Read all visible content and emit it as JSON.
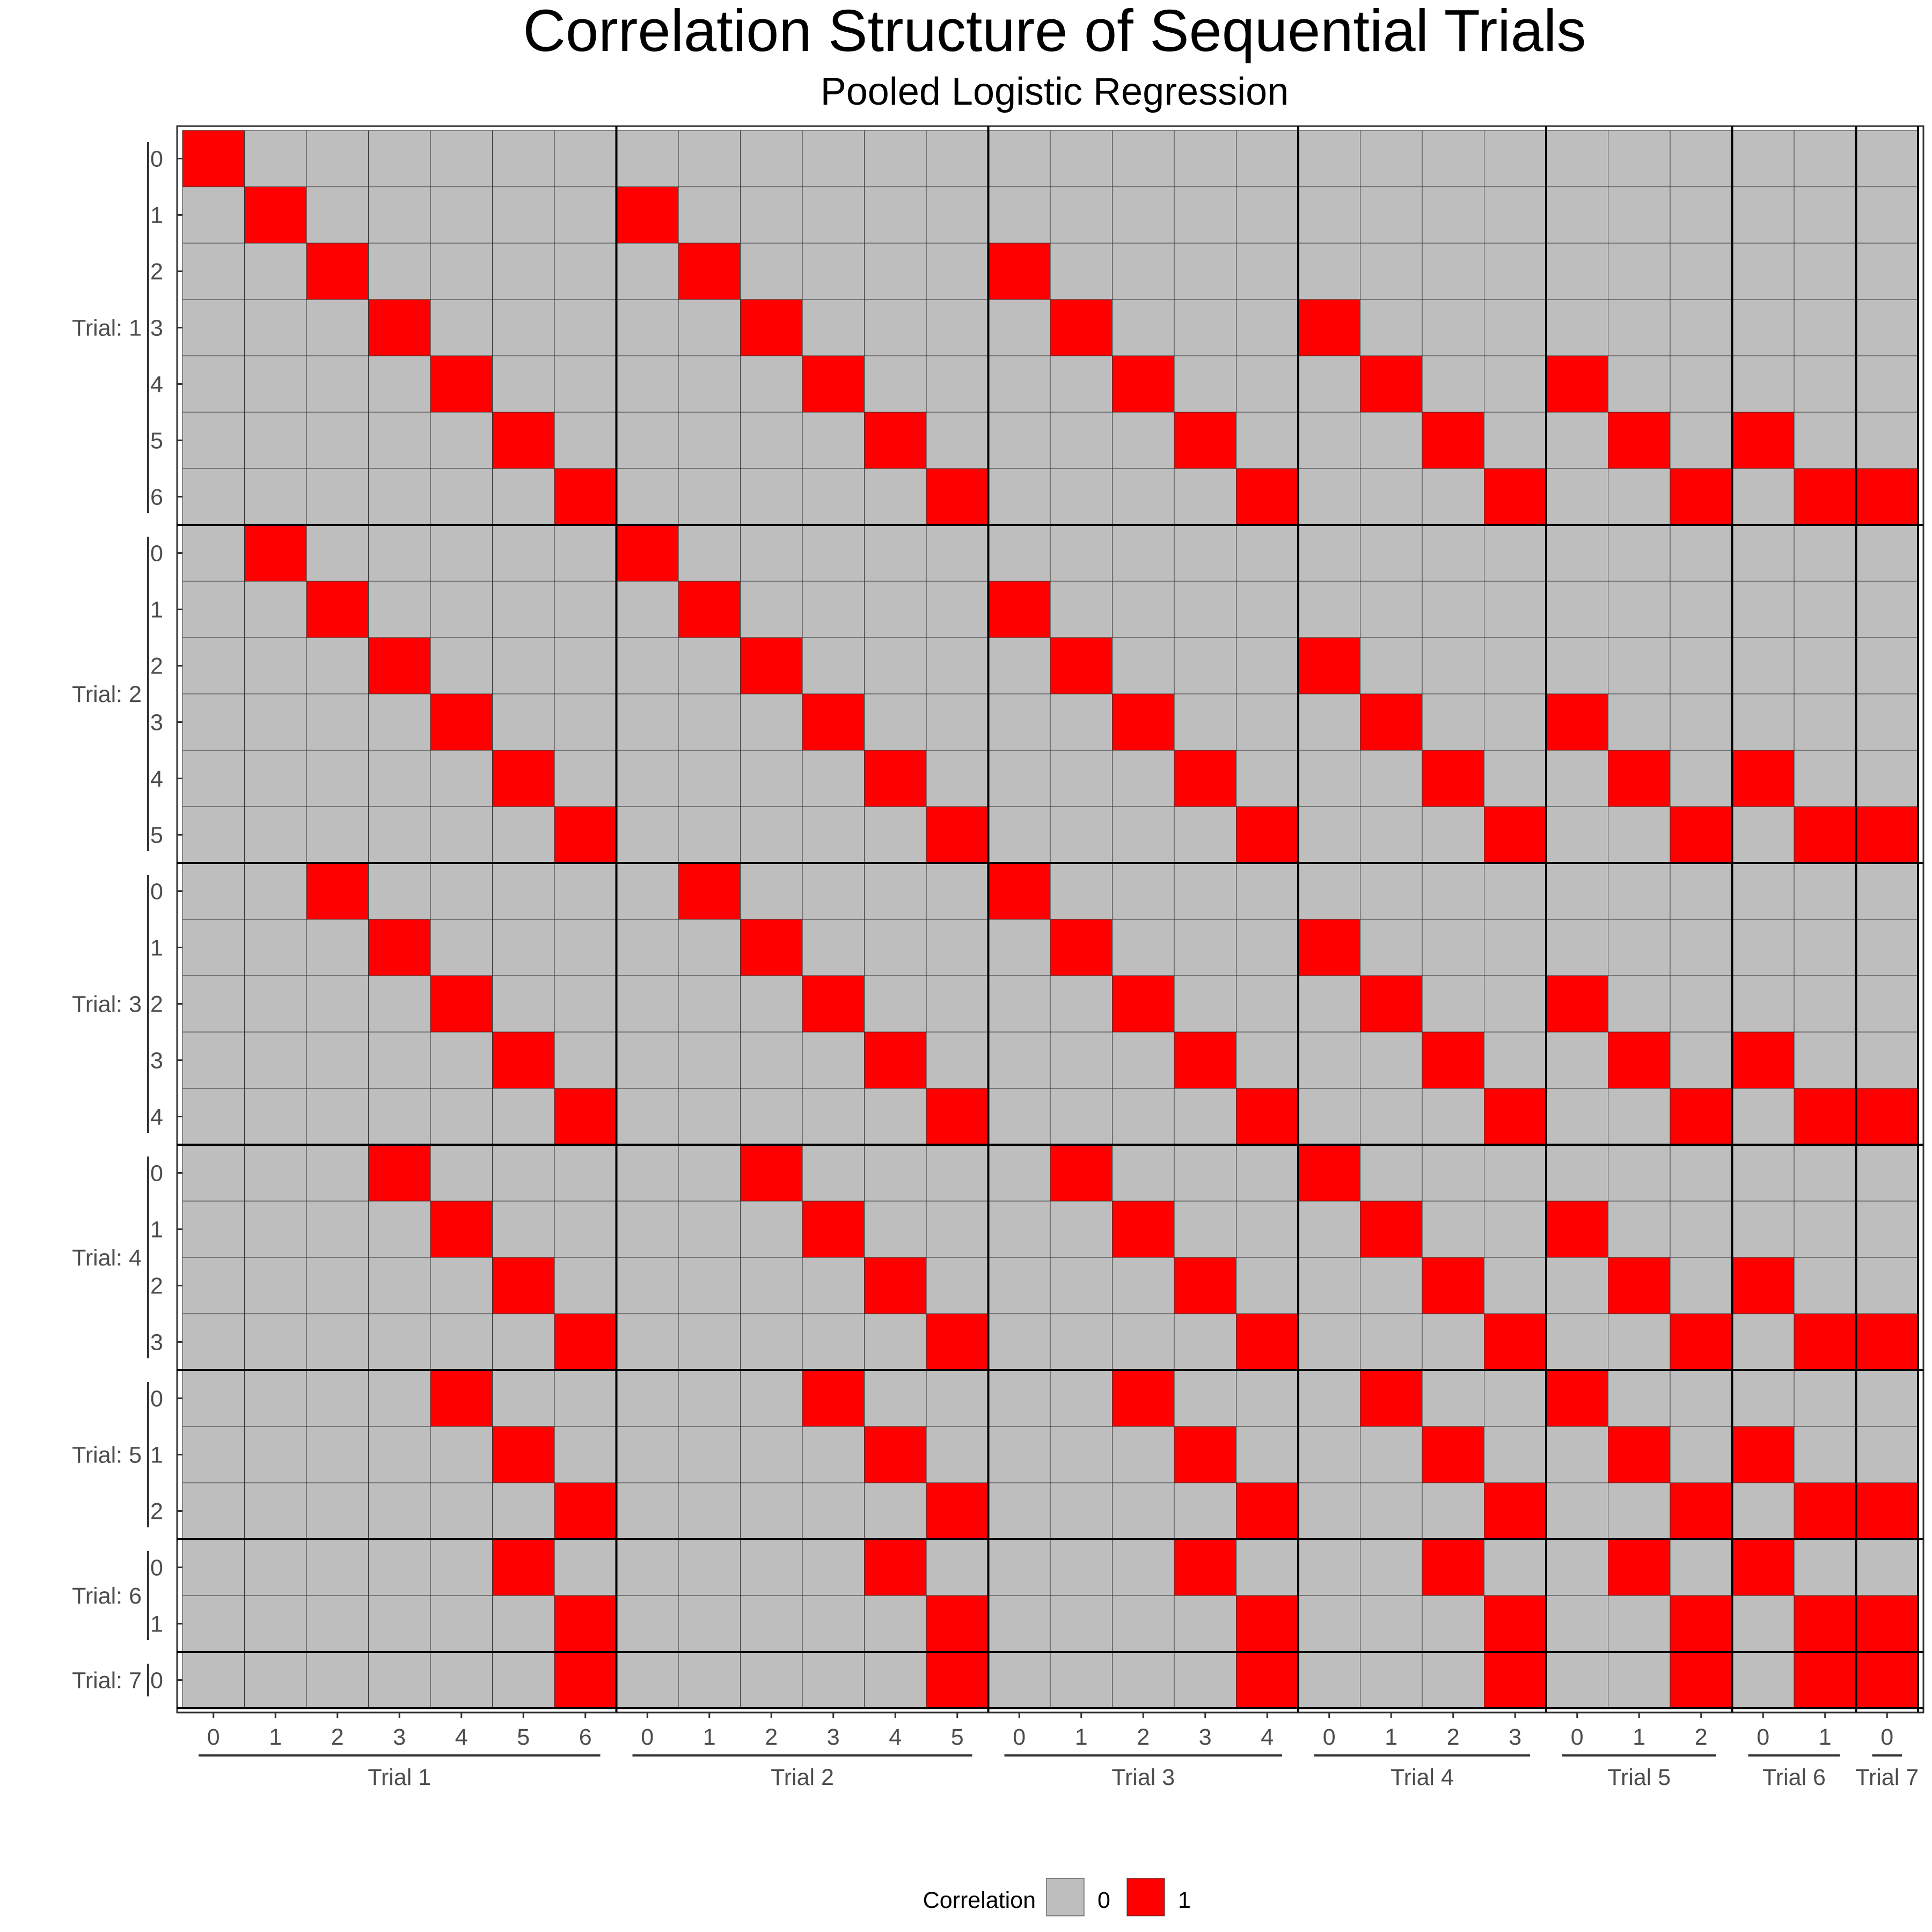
{
  "chart_data": {
    "type": "heatmap",
    "title": "Correlation Structure of Sequential Trials",
    "subtitle": "Pooled Logistic Regression",
    "trials": [
      {
        "label": "Trial 1",
        "row_label": "Trial: 1",
        "times": [
          "0",
          "1",
          "2",
          "3",
          "4",
          "5",
          "6"
        ]
      },
      {
        "label": "Trial 2",
        "row_label": "Trial: 2",
        "times": [
          "0",
          "1",
          "2",
          "3",
          "4",
          "5"
        ]
      },
      {
        "label": "Trial 3",
        "row_label": "Trial: 3",
        "times": [
          "0",
          "1",
          "2",
          "3",
          "4"
        ]
      },
      {
        "label": "Trial 4",
        "row_label": "Trial: 4",
        "times": [
          "0",
          "1",
          "2",
          "3"
        ]
      },
      {
        "label": "Trial 5",
        "row_label": "Trial: 5",
        "times": [
          "0",
          "1",
          "2"
        ]
      },
      {
        "label": "Trial 6",
        "row_label": "Trial: 6",
        "times": [
          "0",
          "1"
        ]
      },
      {
        "label": "Trial 7",
        "row_label": "Trial: 7",
        "times": [
          "0"
        ]
      }
    ],
    "rule": "Cell (trial i, time a) x (trial j, time b) = 1 when (i - 1) + a == (j - 1) + b, else 0",
    "legend": {
      "title": "Correlation",
      "entries": [
        {
          "label": "0",
          "color": "#bebebe"
        },
        {
          "label": "1",
          "color": "#ff0000"
        }
      ],
      "position": "bottom"
    },
    "colors": {
      "zero": "#bebebe",
      "one": "#ff0000",
      "cell_border": "#333333",
      "trial_border": "#000000"
    }
  }
}
